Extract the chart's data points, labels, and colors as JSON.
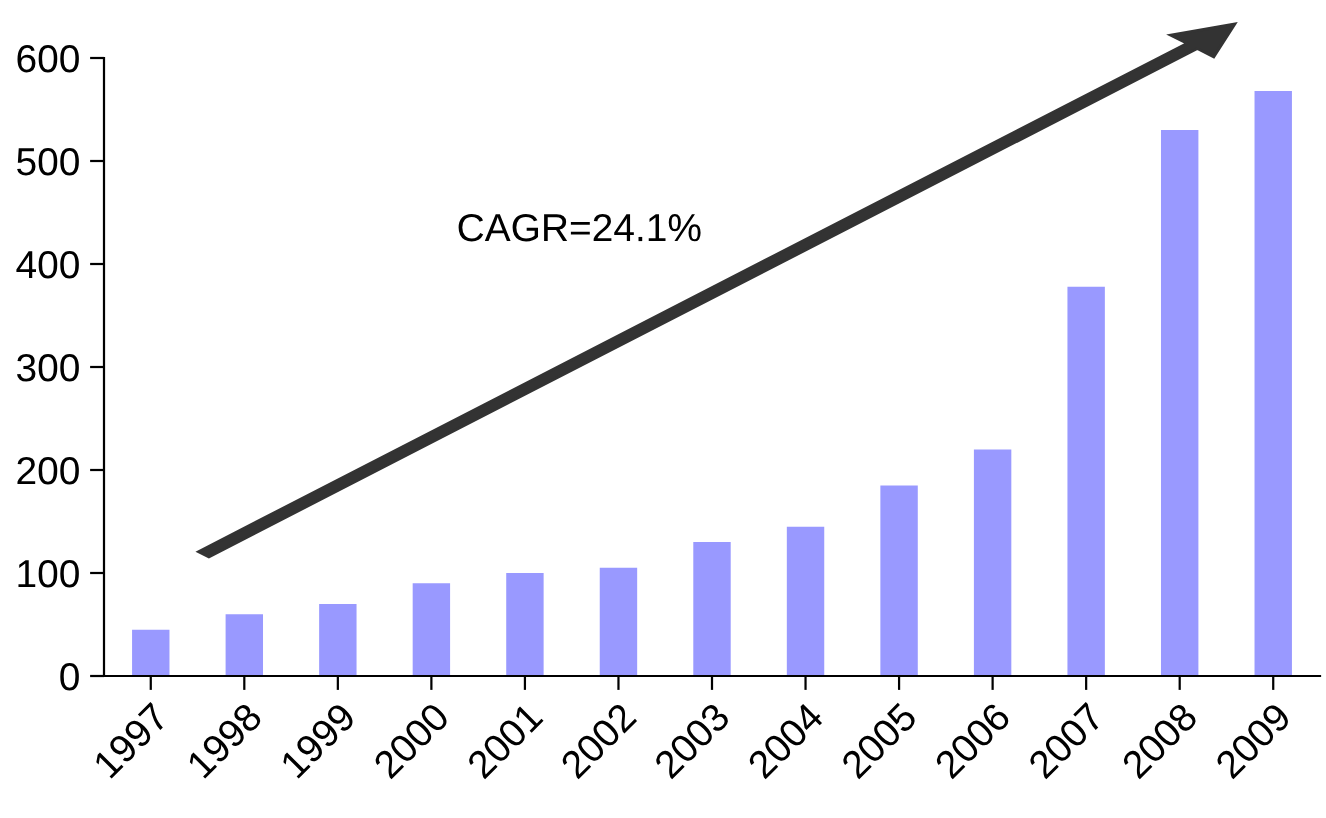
{
  "chart_data": {
    "type": "bar",
    "categories": [
      "1997",
      "1998",
      "1999",
      "2000",
      "2001",
      "2002",
      "2003",
      "2004",
      "2005",
      "2006",
      "2007",
      "2008",
      "2009"
    ],
    "values": [
      45,
      60,
      70,
      90,
      100,
      105,
      130,
      145,
      185,
      220,
      378,
      530,
      568
    ],
    "color": "#9999ff",
    "ylim": [
      0,
      600
    ],
    "yticks": [
      0,
      100,
      200,
      300,
      400,
      500,
      600
    ],
    "grid": false,
    "annotations": [
      "CAGR=24.1%"
    ]
  }
}
